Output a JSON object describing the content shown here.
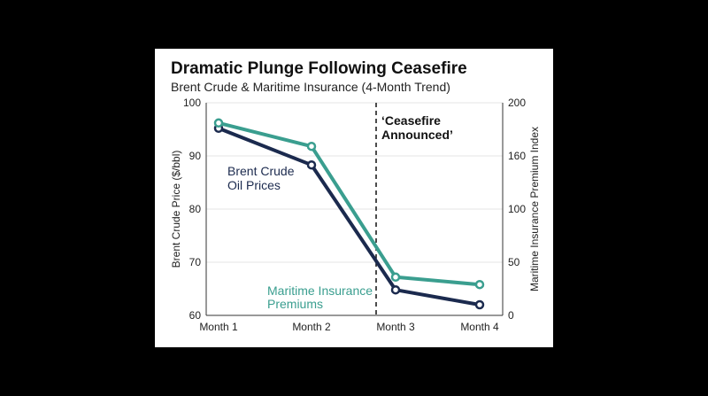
{
  "chart_data": {
    "type": "line",
    "title": "Dramatic Plunge Following Ceasefire",
    "subtitle": "Brent Crude & Maritime Insurance (4-Month Trend)",
    "categories": [
      "Month 1",
      "Month 2",
      "Month 3",
      "Month 4"
    ],
    "y_left": {
      "label": "Brent Crude Price ($/bbl)",
      "range": [
        60,
        100
      ],
      "ticks": [
        "60",
        "70",
        "80",
        "90",
        "100"
      ]
    },
    "y_right": {
      "label": "Maritime Insurance Premium Index",
      "range": [
        0,
        200
      ],
      "ticks": [
        "0",
        "50",
        "100",
        "160",
        "200"
      ]
    },
    "grid": true,
    "series": [
      {
        "name": "Brent Crude Oil Prices",
        "label_lines": [
          "Brent Crude",
          "Oil Prices"
        ],
        "axis": "left",
        "color": "#1b2a4e",
        "values": [
          95.2,
          88.3,
          64.8,
          62.0
        ]
      },
      {
        "name": "Maritime Insurance Premiums",
        "label_lines": [
          "Maritime Insurance",
          "Premiums"
        ],
        "axis": "right",
        "color": "#3a9e8f",
        "values": [
          181,
          159,
          36,
          29
        ]
      }
    ],
    "annotation": {
      "text_lines": [
        "‘Ceasefire",
        "Announced’"
      ],
      "position": "between Month 2 and Month 3"
    }
  }
}
